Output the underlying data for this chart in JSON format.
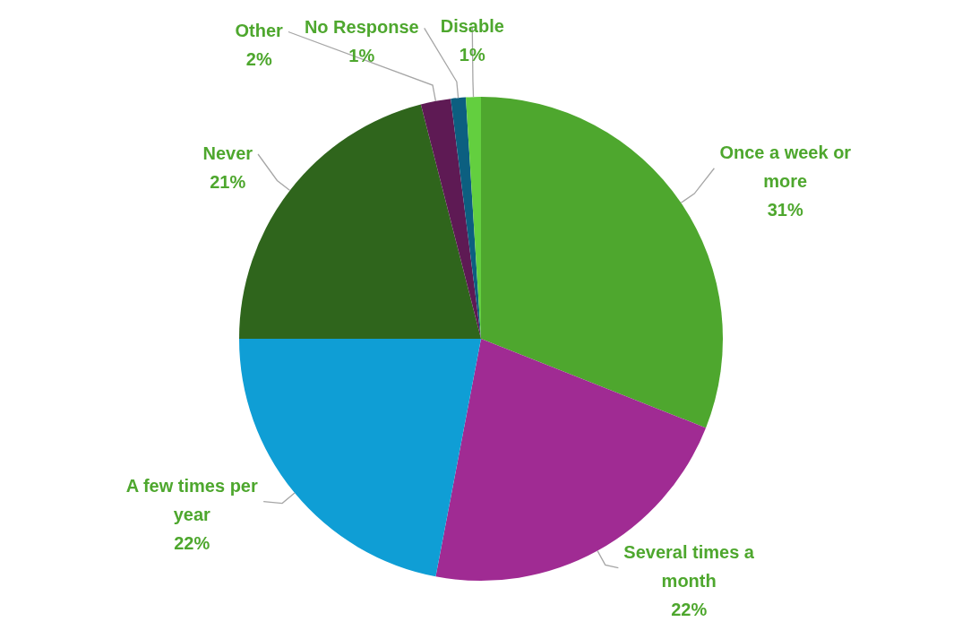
{
  "chart_data": {
    "type": "pie",
    "categories": [
      "Once a week or more",
      "Several times a month",
      "A few times per year",
      "Never",
      "Other",
      "No Response",
      "Disable"
    ],
    "values": [
      31,
      22,
      22,
      21,
      2,
      1,
      1
    ],
    "colors": [
      "#4ea72e",
      "#a02b93",
      "#0f9ed5",
      "#2f651c",
      "#5e1a54",
      "#0c5f80",
      "#63cf3f"
    ],
    "value_labels": [
      "31%",
      "22%",
      "22%",
      "21%",
      "2%",
      "1%",
      "1%"
    ],
    "legend": false
  }
}
